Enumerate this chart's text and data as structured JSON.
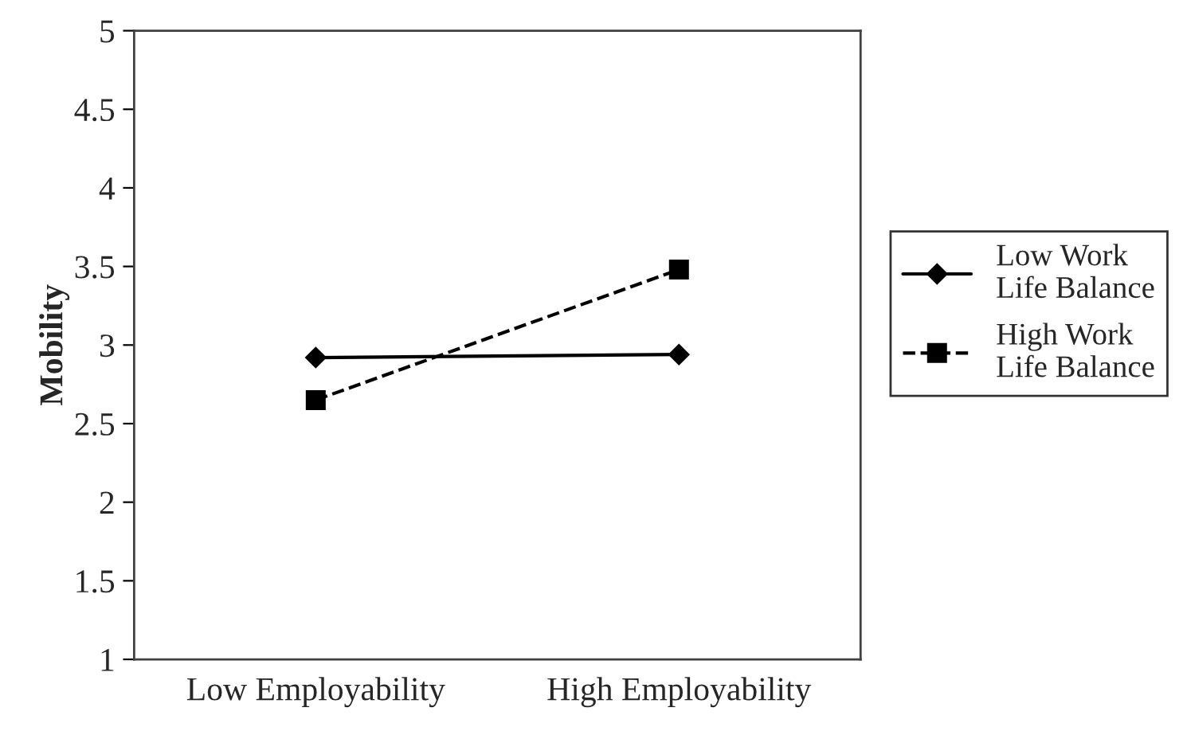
{
  "chart_data": {
    "type": "line",
    "ylabel": "Mobility",
    "categories": [
      "Low Employability",
      "High Employability"
    ],
    "series": [
      {
        "name": "Low Work\nLife Balance",
        "color": "#000000",
        "values": [
          2.92,
          2.94
        ],
        "marker": "diamond",
        "line_style": "solid"
      },
      {
        "name": "High Work\nLife Balance",
        "color": "#000000",
        "values": [
          2.65,
          3.48
        ],
        "marker": "square",
        "line_style": "dashed"
      }
    ],
    "ylim": [
      1,
      5
    ],
    "yticks": [
      1,
      1.5,
      2,
      2.5,
      3,
      3.5,
      4,
      4.5,
      5
    ],
    "grid": false,
    "legend": "right"
  }
}
